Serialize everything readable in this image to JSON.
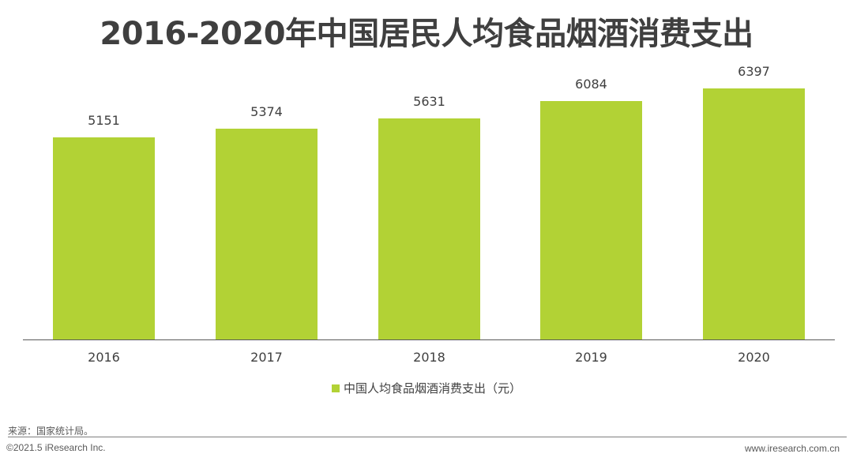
{
  "title": "2016-2020年中国居民人均食品烟酒消费支出",
  "chart_data": {
    "type": "bar",
    "title": "2016-2020年中国居民人均食品烟酒消费支出",
    "categories": [
      "2016",
      "2017",
      "2018",
      "2019",
      "2020"
    ],
    "series": [
      {
        "name": "中国人均食品烟酒消费支出（元）",
        "values": [
          5151,
          5374,
          5631,
          6084,
          6397
        ],
        "color": "#b2d235"
      }
    ],
    "values": [
      5151,
      5374,
      5631,
      6084,
      6397
    ],
    "xlabel": "",
    "ylabel": "",
    "ylim": [
      0,
      6500
    ],
    "grid": false,
    "legend_position": "bottom",
    "data_labels": true
  },
  "bars": [
    {
      "year": "2016",
      "value": "5151"
    },
    {
      "year": "2017",
      "value": "5374"
    },
    {
      "year": "2018",
      "value": "5631"
    },
    {
      "year": "2019",
      "value": "6084"
    },
    {
      "year": "2020",
      "value": "6397"
    }
  ],
  "legend": {
    "label": "中国人均食品烟酒消费支出（元）"
  },
  "footer": {
    "source": "来源：国家统计局。",
    "copyright": "©2021.5 iResearch Inc.",
    "website": "www.iresearch.com.cn"
  }
}
